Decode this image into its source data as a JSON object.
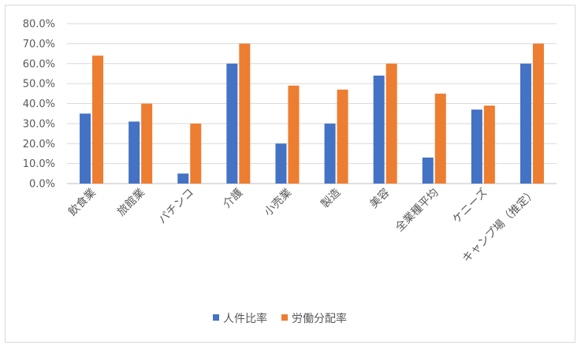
{
  "chart_data": {
    "type": "bar",
    "categories": [
      "飲食業",
      "旅館業",
      "パチンコ",
      "介護",
      "小売業",
      "製造",
      "美容",
      "全業種平均",
      "ケニーズ",
      "キャンプ場（推定）"
    ],
    "series": [
      {
        "name": "人件比率",
        "color": "#4472c4",
        "values": [
          35,
          31,
          5,
          60,
          20,
          30,
          54,
          13,
          37,
          60
        ]
      },
      {
        "name": "労働分配率",
        "color": "#ed7d31",
        "values": [
          64,
          40,
          30,
          70,
          49,
          47,
          60,
          45,
          39,
          70
        ]
      }
    ],
    "yticks": [
      "0.0%",
      "10.0%",
      "20.0%",
      "30.0%",
      "40.0%",
      "50.0%",
      "60.0%",
      "70.0%",
      "80.0%"
    ],
    "ylim": [
      0,
      80
    ],
    "grid": true,
    "legend": "bottom"
  }
}
